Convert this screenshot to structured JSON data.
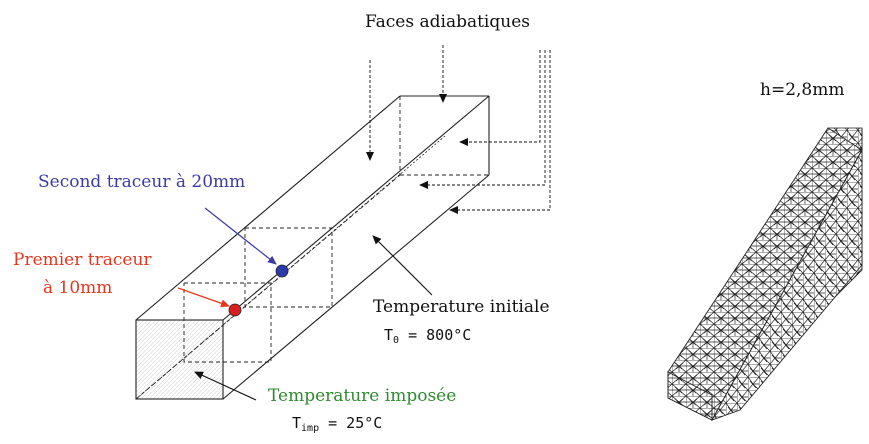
{
  "labels": {
    "faces": "Faces adiabatiques",
    "second_tracer": "Second traceur  à 20mm",
    "first_tracer_line1": "Premier traceur",
    "first_tracer_line2": "à 10mm",
    "initial_temp": "Temperature initiale",
    "t0_symbol": "T",
    "t0_subscript": "0",
    "t0_value": " = 800°C",
    "imposed_temp": "Temperature imposée",
    "timp_symbol": "T",
    "timp_subscript": "imp",
    "timp_value": " = 25°C",
    "mesh_height": "h=2,8mm"
  },
  "colors": {
    "second_tracer": "#3b3ba6",
    "first_tracer": "#e8361e",
    "imposed": "#2e8b2e",
    "text": "#111111",
    "marker_blue": "#2a3aa8",
    "marker_red": "#d91f1f"
  }
}
